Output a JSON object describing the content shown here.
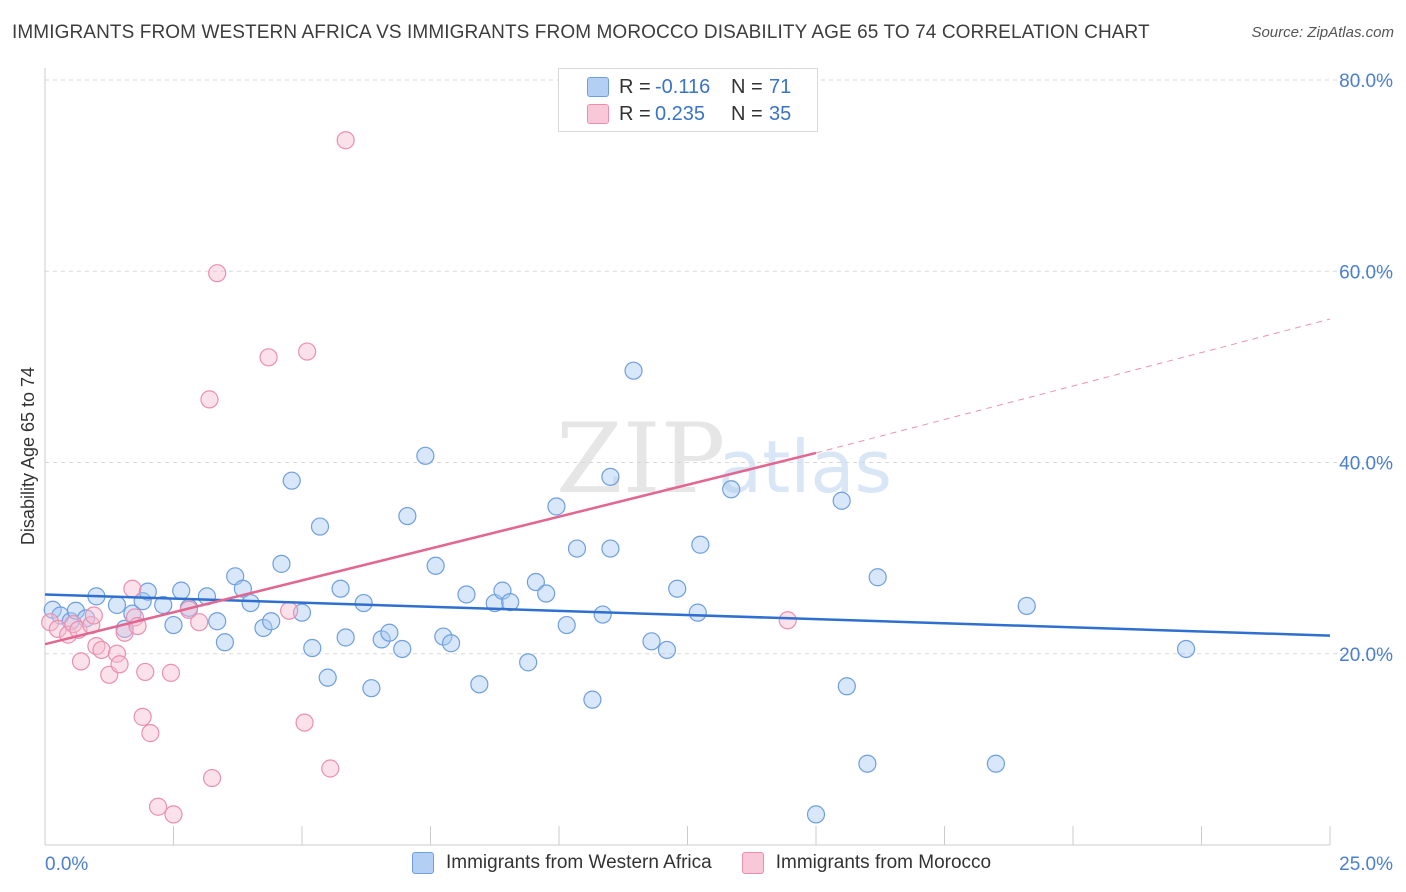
{
  "title": "IMMIGRANTS FROM WESTERN AFRICA VS IMMIGRANTS FROM MOROCCO DISABILITY AGE 65 TO 74 CORRELATION CHART",
  "source": "Source: ZipAtlas.com",
  "watermark": {
    "zip": "ZIP",
    "atlas": "atlas"
  },
  "legend": {
    "series1": {
      "r_label": "R =",
      "r_value": "-0.116",
      "n_label": "N =",
      "n_value": "71"
    },
    "series2": {
      "r_label": "R =",
      "r_value": "0.235",
      "n_label": "N =",
      "n_value": "35"
    }
  },
  "colors": {
    "series1_fill": "#a9c9f2",
    "series1_stroke": "#6f9fe0",
    "series1_line": "#2f6fcf",
    "series2_fill": "#f6bdd0",
    "series2_stroke": "#eb8fb0",
    "series2_line": "#e36691",
    "tick_text": "#4a7fd0",
    "grid": "#d8d8d8"
  },
  "chart_data": {
    "type": "scatter",
    "title": "IMMIGRANTS FROM WESTERN AFRICA VS IMMIGRANTS FROM MOROCCO DISABILITY AGE 65 TO 74 CORRELATION CHART",
    "xlabel": "",
    "ylabel": "Disability Age 65 to 74",
    "xlim": [
      0,
      25
    ],
    "ylim": [
      0,
      80
    ],
    "x_ticks": [
      "0.0%",
      "25.0%"
    ],
    "y_ticks": [
      {
        "value": 20,
        "label": "20.0%"
      },
      {
        "value": 40,
        "label": "40.0%"
      },
      {
        "value": 60,
        "label": "60.0%"
      },
      {
        "value": 80,
        "label": "80.0%"
      }
    ],
    "grid": "horizontal dashed",
    "legend_position": "top-center",
    "series": [
      {
        "name": "Immigrants from Western Africa",
        "trend": {
          "x": [
            0,
            25
          ],
          "y": [
            26.2,
            21.9
          ],
          "dashed_extension": false
        },
        "points": [
          [
            0.15,
            24.6
          ],
          [
            0.3,
            24.0
          ],
          [
            0.5,
            23.4
          ],
          [
            0.6,
            24.5
          ],
          [
            0.8,
            23.7
          ],
          [
            1.0,
            26.0
          ],
          [
            1.4,
            25.1
          ],
          [
            1.55,
            22.6
          ],
          [
            1.7,
            24.2
          ],
          [
            1.9,
            25.5
          ],
          [
            2.0,
            26.5
          ],
          [
            2.3,
            25.1
          ],
          [
            2.5,
            23.0
          ],
          [
            2.65,
            26.6
          ],
          [
            2.8,
            24.8
          ],
          [
            3.15,
            26.0
          ],
          [
            3.35,
            23.4
          ],
          [
            3.5,
            21.2
          ],
          [
            3.7,
            28.1
          ],
          [
            3.85,
            26.8
          ],
          [
            4.0,
            25.3
          ],
          [
            4.25,
            22.7
          ],
          [
            4.4,
            23.4
          ],
          [
            4.6,
            29.4
          ],
          [
            4.8,
            38.1
          ],
          [
            5.0,
            24.3
          ],
          [
            5.2,
            20.6
          ],
          [
            5.35,
            33.3
          ],
          [
            5.5,
            17.5
          ],
          [
            5.75,
            26.8
          ],
          [
            5.85,
            21.7
          ],
          [
            6.2,
            25.3
          ],
          [
            6.35,
            16.4
          ],
          [
            6.55,
            21.5
          ],
          [
            6.7,
            22.2
          ],
          [
            6.95,
            20.5
          ],
          [
            7.05,
            34.4
          ],
          [
            7.4,
            40.7
          ],
          [
            7.6,
            29.2
          ],
          [
            7.75,
            21.8
          ],
          [
            7.9,
            21.1
          ],
          [
            8.2,
            26.2
          ],
          [
            8.45,
            16.8
          ],
          [
            8.75,
            25.3
          ],
          [
            8.9,
            26.6
          ],
          [
            9.05,
            25.4
          ],
          [
            9.4,
            19.1
          ],
          [
            9.55,
            27.5
          ],
          [
            9.75,
            26.3
          ],
          [
            9.95,
            35.4
          ],
          [
            10.15,
            23.0
          ],
          [
            10.35,
            31.0
          ],
          [
            10.65,
            15.2
          ],
          [
            10.85,
            24.1
          ],
          [
            11.0,
            38.5
          ],
          [
            11.0,
            31.0
          ],
          [
            11.45,
            49.6
          ],
          [
            11.8,
            21.3
          ],
          [
            12.1,
            20.4
          ],
          [
            12.3,
            26.8
          ],
          [
            12.7,
            24.3
          ],
          [
            12.75,
            31.4
          ],
          [
            13.35,
            37.2
          ],
          [
            15.0,
            3.2
          ],
          [
            15.5,
            36.0
          ],
          [
            15.6,
            16.6
          ],
          [
            16.0,
            8.5
          ],
          [
            16.2,
            28.0
          ],
          [
            18.5,
            8.5
          ],
          [
            19.1,
            25.0
          ],
          [
            22.2,
            20.5
          ]
        ]
      },
      {
        "name": "Immigrants from Morocco",
        "trend": {
          "x": [
            0,
            15
          ],
          "y": [
            21.0,
            41.0
          ],
          "dashed_extension": {
            "x": [
              15,
              25
            ],
            "y": [
              41.0,
              55.0
            ]
          }
        },
        "points": [
          [
            0.1,
            23.3
          ],
          [
            0.25,
            22.6
          ],
          [
            0.45,
            22.0
          ],
          [
            0.55,
            23.1
          ],
          [
            0.65,
            22.5
          ],
          [
            0.7,
            19.2
          ],
          [
            0.9,
            23.0
          ],
          [
            0.95,
            24.0
          ],
          [
            1.0,
            20.8
          ],
          [
            1.1,
            20.4
          ],
          [
            1.25,
            17.8
          ],
          [
            1.4,
            20.0
          ],
          [
            1.45,
            18.9
          ],
          [
            1.55,
            22.2
          ],
          [
            1.7,
            26.8
          ],
          [
            1.75,
            23.8
          ],
          [
            1.8,
            22.9
          ],
          [
            1.9,
            13.4
          ],
          [
            1.95,
            18.1
          ],
          [
            2.05,
            11.7
          ],
          [
            2.2,
            4.0
          ],
          [
            2.45,
            18.0
          ],
          [
            2.5,
            3.2
          ],
          [
            2.8,
            24.6
          ],
          [
            3.0,
            23.3
          ],
          [
            3.2,
            46.6
          ],
          [
            3.25,
            7.0
          ],
          [
            3.35,
            59.8
          ],
          [
            4.35,
            51.0
          ],
          [
            4.75,
            24.5
          ],
          [
            5.05,
            12.8
          ],
          [
            5.1,
            51.6
          ],
          [
            5.55,
            8.0
          ],
          [
            5.85,
            73.7
          ],
          [
            14.45,
            23.5
          ]
        ]
      }
    ]
  },
  "bottom_legend": {
    "series1_label": "Immigrants from Western Africa",
    "series2_label": "Immigrants from Morocco"
  }
}
